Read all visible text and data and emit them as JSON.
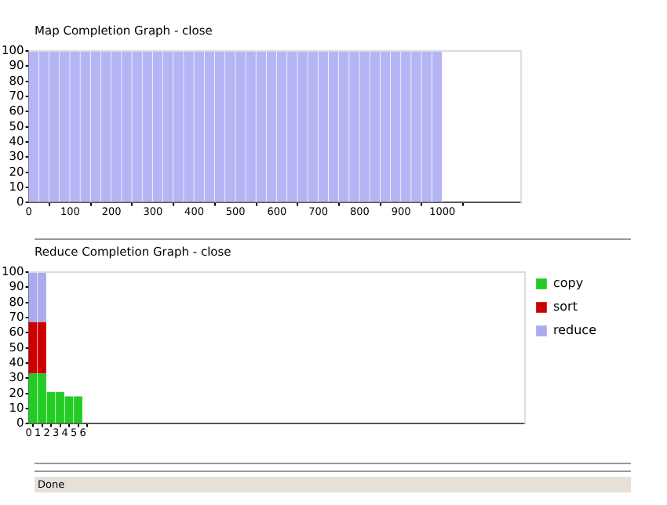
{
  "chart_data": [
    {
      "type": "histogram",
      "title": "Map Completion Graph - close",
      "bins": [
        0,
        25,
        50,
        75,
        100,
        125,
        150,
        175,
        200,
        225,
        250,
        275,
        300,
        325,
        350,
        375,
        400,
        425,
        450,
        475,
        500,
        525,
        550,
        575,
        600,
        625,
        650,
        675,
        700,
        725,
        750,
        775,
        800,
        825,
        850,
        875,
        900,
        925,
        950,
        975,
        1000
      ],
      "values": [
        100,
        100,
        100,
        100,
        100,
        100,
        100,
        100,
        100,
        100,
        100,
        100,
        100,
        100,
        100,
        100,
        100,
        100,
        100,
        100,
        100,
        100,
        100,
        100,
        100,
        100,
        100,
        100,
        100,
        100,
        100,
        100,
        100,
        100,
        100,
        100,
        100,
        100,
        100,
        100
      ],
      "color": "#b5b5f5",
      "xlim": [
        0,
        1190
      ],
      "xticks": [
        0,
        100,
        200,
        300,
        400,
        500,
        600,
        700,
        800,
        900,
        1000
      ],
      "ylim": [
        0,
        100
      ],
      "yticks": [
        0,
        10,
        20,
        30,
        40,
        50,
        60,
        70,
        80,
        90,
        100
      ],
      "grid": false,
      "legend": false
    },
    {
      "type": "bar",
      "title": "Reduce Completion Graph - close",
      "stacked": true,
      "x": [
        0.5,
        1.5,
        2.5,
        3.5,
        4.5,
        5.5
      ],
      "series": [
        {
          "name": "copy",
          "color": "#22cc22",
          "values": [
            33,
            33,
            21,
            21,
            18,
            18
          ]
        },
        {
          "name": "sort",
          "color": "#cc0000",
          "values": [
            34,
            34,
            0,
            0,
            0,
            0
          ]
        },
        {
          "name": "reduce",
          "color": "#aaaaee",
          "values": [
            33,
            33,
            0,
            0,
            0,
            0
          ]
        }
      ],
      "xlim": [
        0,
        55
      ],
      "xticks": [
        0,
        1,
        2,
        3,
        4,
        5,
        6
      ],
      "ylim": [
        0,
        100
      ],
      "yticks": [
        0,
        10,
        20,
        30,
        40,
        50,
        60,
        70,
        80,
        90,
        100
      ],
      "grid": false,
      "legend": "right",
      "annotations": [
        "Done"
      ]
    }
  ]
}
